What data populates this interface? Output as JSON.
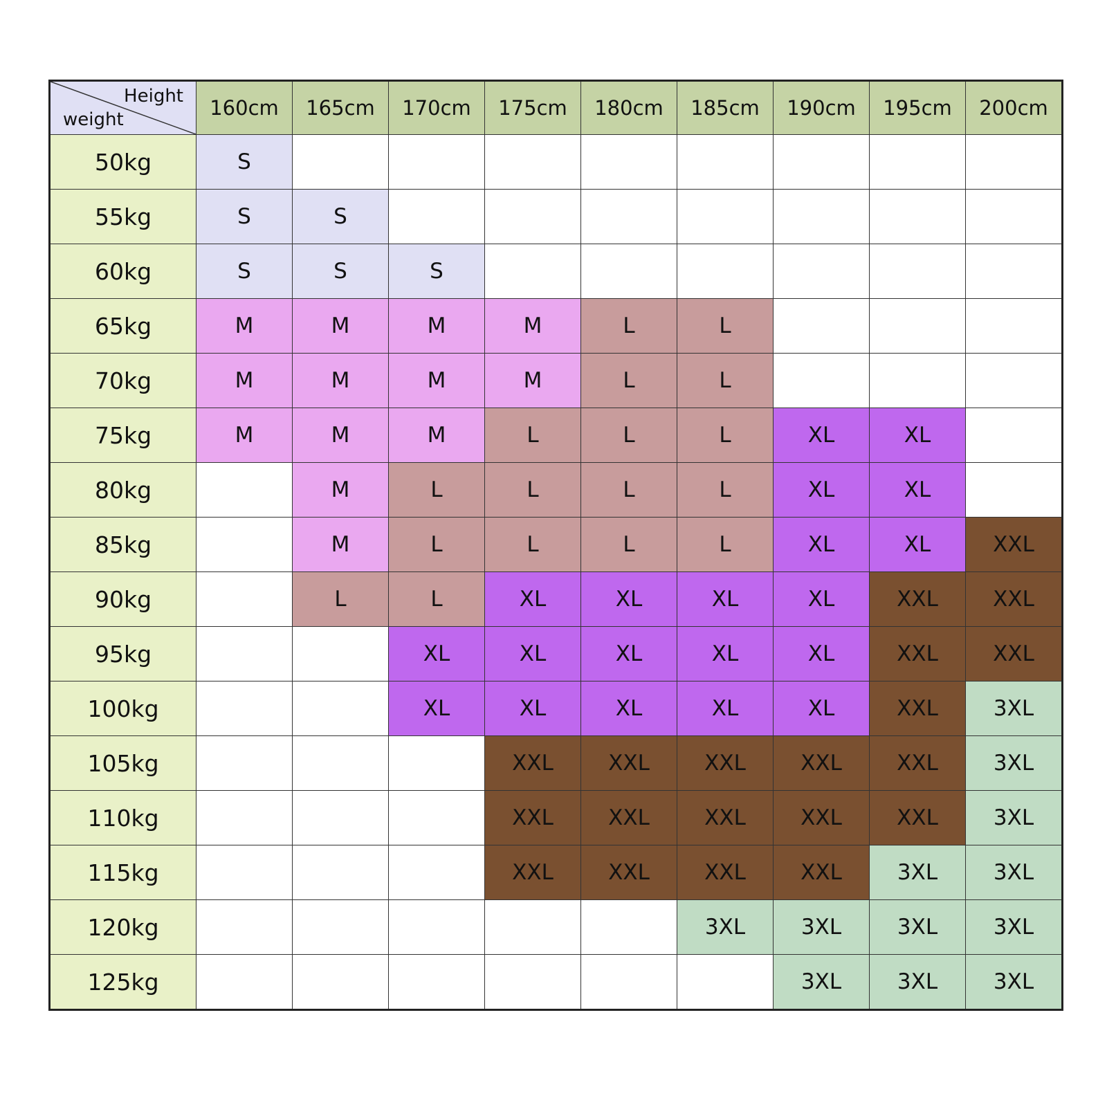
{
  "corner": {
    "top_label": "Height",
    "bottom_label": "weight"
  },
  "columns": [
    "160cm",
    "165cm",
    "170cm",
    "175cm",
    "180cm",
    "185cm",
    "190cm",
    "195cm",
    "200cm"
  ],
  "size_colors": {
    "S": "#e0e0f4",
    "M": "#eaa8f0",
    "L": "#c89c9c",
    "XL": "#bf68ee",
    "XXL": "#7a5030",
    "3XL": "#c0dcc4"
  },
  "header_color": "#c5d3a5",
  "row_label_color": "#e9f1c8",
  "corner_color": "#e0e0f4",
  "rows": [
    {
      "label": "50kg",
      "cells": [
        "S",
        null,
        null,
        null,
        null,
        null,
        null,
        null,
        null
      ]
    },
    {
      "label": "55kg",
      "cells": [
        "S",
        "S",
        null,
        null,
        null,
        null,
        null,
        null,
        null
      ]
    },
    {
      "label": "60kg",
      "cells": [
        "S",
        "S",
        "S",
        null,
        null,
        null,
        null,
        null,
        null
      ]
    },
    {
      "label": "65kg",
      "cells": [
        "M",
        "M",
        "M",
        "M",
        "L",
        "L",
        null,
        null,
        null
      ]
    },
    {
      "label": "70kg",
      "cells": [
        "M",
        "M",
        "M",
        "M",
        "L",
        "L",
        null,
        null,
        null
      ]
    },
    {
      "label": "75kg",
      "cells": [
        "M",
        "M",
        "M",
        "L",
        "L",
        "L",
        "XL",
        "XL",
        null
      ]
    },
    {
      "label": "80kg",
      "cells": [
        null,
        "M",
        "L",
        "L",
        "L",
        "L",
        "XL",
        "XL",
        null
      ]
    },
    {
      "label": "85kg",
      "cells": [
        null,
        "M",
        "L",
        "L",
        "L",
        "L",
        "XL",
        "XL",
        "XXL"
      ]
    },
    {
      "label": "90kg",
      "cells": [
        null,
        "L",
        "L",
        "XL",
        "XL",
        "XL",
        "XL",
        "XXL",
        "XXL"
      ]
    },
    {
      "label": "95kg",
      "cells": [
        null,
        null,
        "XL",
        "XL",
        "XL",
        "XL",
        "XL",
        "XXL",
        "XXL"
      ]
    },
    {
      "label": "100kg",
      "cells": [
        null,
        null,
        "XL",
        "XL",
        "XL",
        "XL",
        "XL",
        "XXL",
        "3XL"
      ]
    },
    {
      "label": "105kg",
      "cells": [
        null,
        null,
        null,
        "XXL",
        "XXL",
        "XXL",
        "XXL",
        "XXL",
        "3XL"
      ]
    },
    {
      "label": "110kg",
      "cells": [
        null,
        null,
        null,
        "XXL",
        "XXL",
        "XXL",
        "XXL",
        "XXL",
        "3XL"
      ]
    },
    {
      "label": "115kg",
      "cells": [
        null,
        null,
        null,
        "XXL",
        "XXL",
        "XXL",
        "XXL",
        "3XL",
        "3XL"
      ]
    },
    {
      "label": "120kg",
      "cells": [
        null,
        null,
        null,
        null,
        null,
        "3XL",
        "3XL",
        "3XL",
        "3XL"
      ]
    },
    {
      "label": "125kg",
      "cells": [
        null,
        null,
        null,
        null,
        null,
        null,
        "3XL",
        "3XL",
        "3XL"
      ]
    }
  ]
}
